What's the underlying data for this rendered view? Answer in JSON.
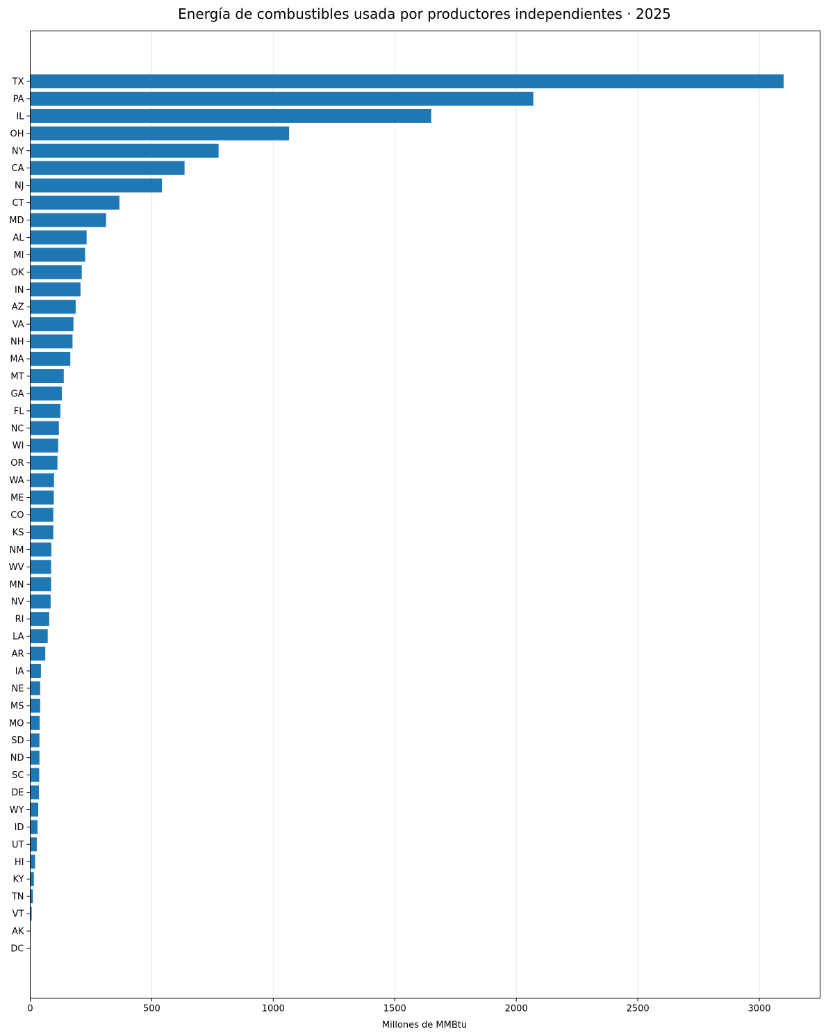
{
  "chart_data": {
    "type": "bar",
    "orientation": "horizontal",
    "title": "Energía de combustibles usada por productores independientes · 2025",
    "xlabel": "Millones de MMBtu",
    "ylabel": "",
    "xlim": [
      0,
      3250
    ],
    "xticks": [
      0,
      500,
      1000,
      1500,
      2000,
      2500,
      3000
    ],
    "grid": "vertical",
    "bar_color": "#1f77b4",
    "categories": [
      "TX",
      "PA",
      "IL",
      "OH",
      "NY",
      "CA",
      "NJ",
      "CT",
      "MD",
      "AL",
      "MI",
      "OK",
      "IN",
      "AZ",
      "VA",
      "NH",
      "MA",
      "MT",
      "GA",
      "FL",
      "NC",
      "WI",
      "OR",
      "WA",
      "ME",
      "CO",
      "KS",
      "NM",
      "WV",
      "MN",
      "NV",
      "RI",
      "LA",
      "AR",
      "IA",
      "NE",
      "MS",
      "MO",
      "SD",
      "ND",
      "SC",
      "DE",
      "WY",
      "ID",
      "UT",
      "HI",
      "KY",
      "TN",
      "VT",
      "AK",
      "DC"
    ],
    "values": [
      3100,
      2070,
      1650,
      1065,
      775,
      635,
      542,
      367,
      312,
      232,
      226,
      212,
      207,
      187,
      178,
      174,
      165,
      138,
      130,
      124,
      118,
      115,
      112,
      98,
      97,
      95,
      95,
      87,
      86,
      86,
      84,
      78,
      72,
      62,
      44,
      41,
      41,
      39,
      38,
      38,
      37,
      36,
      33,
      30,
      27,
      20,
      15,
      11,
      6,
      2,
      1
    ]
  }
}
